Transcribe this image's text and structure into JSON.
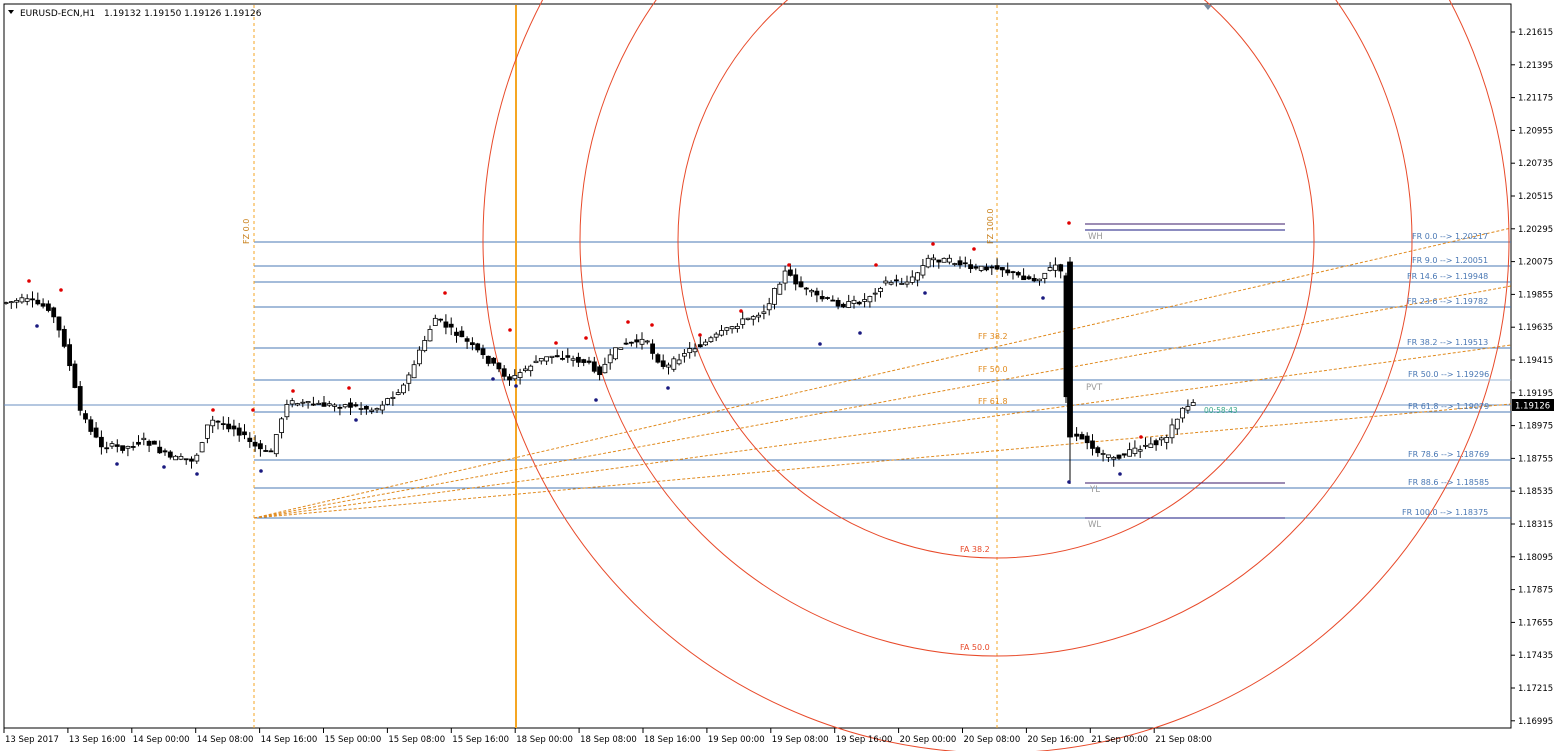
{
  "header": {
    "symbol_label": "EURUSD-ECN,H1",
    "ohlc": "1.19132 1.19150 1.19126 1.19126",
    "menu_icon": "triangle-down-icon"
  },
  "current_price": "1.19126",
  "countdown": "00:58:43",
  "price_axis": {
    "ticks": [
      "1.21615",
      "1.21395",
      "1.21175",
      "1.20955",
      "1.20735",
      "1.20515",
      "1.20295",
      "1.20075",
      "1.19855",
      "1.19635",
      "1.19415",
      "1.19195",
      "1.18975",
      "1.18755",
      "1.18535",
      "1.18315",
      "1.18095",
      "1.17875",
      "1.17655",
      "1.17435",
      "1.17215",
      "1.16995"
    ]
  },
  "time_axis": {
    "ticks": [
      "13 Sep 2017",
      "13 Sep 16:00",
      "14 Sep 00:00",
      "14 Sep 08:00",
      "14 Sep 16:00",
      "15 Sep 00:00",
      "15 Sep 08:00",
      "15 Sep 16:00",
      "18 Sep 00:00",
      "18 Sep 08:00",
      "18 Sep 16:00",
      "19 Sep 00:00",
      "19 Sep 08:00",
      "19 Sep 16:00",
      "20 Sep 00:00",
      "20 Sep 08:00",
      "20 Sep 16:00",
      "21 Sep 00:00",
      "21 Sep 08:00"
    ]
  },
  "fib_retracement": [
    {
      "label": "FR  0.0  --> 1.20217"
    },
    {
      "label": "FR  9.0  --> 1.20051"
    },
    {
      "label": "FR  14.6  --> 1.19948"
    },
    {
      "label": "FR  23.6  --> 1.19782"
    },
    {
      "label": "FR  38.2  --> 1.19513"
    },
    {
      "label": "FR  50.0  --> 1.19296"
    },
    {
      "label": "FR  61.8  --> 1.19079"
    },
    {
      "label": "FR  78.6  --> 1.18769"
    },
    {
      "label": "FR  88.6  --> 1.18585"
    },
    {
      "label": "FR  100.0  --> 1.18375"
    }
  ],
  "fib_fan": [
    "FF  38.2",
    "FF  50.0",
    "FF  61.8"
  ],
  "fib_arcs": [
    "FA  38.2",
    "FA  50.0"
  ],
  "fib_zones": [
    "FZ  0.0",
    "FZ  100.0"
  ],
  "levels": [
    "WH",
    "PVT",
    "YL",
    "WL"
  ],
  "colors": {
    "fib_line": "#4a78b4",
    "fib_text": "#4a78b4",
    "fan": "#e08a1e",
    "arc": "#e84a2a",
    "vline_orange": "#f5a623",
    "week_level": "#1a1a80",
    "day_level": "#3a1a6a",
    "bull_fill": "#ffffff",
    "bear_fill": "#000000",
    "fractal_up": "#e00000",
    "fractal_down": "#1a1a80",
    "countdown": "#3aa88a"
  }
}
